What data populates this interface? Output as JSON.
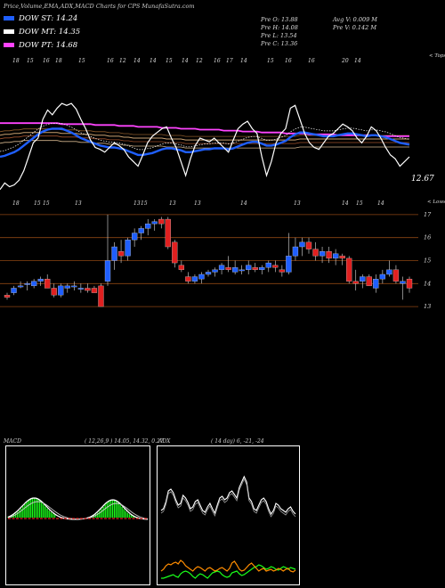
{
  "header": {
    "title": "Price,Volume,EMA,ADX,MACD Charts for CPS MunafaSutra.com"
  },
  "legend": [
    {
      "label": "DOW ST: 14.24",
      "color": "#1f5fff"
    },
    {
      "label": "DOW MT: 14.35",
      "color": "#ffffff"
    },
    {
      "label": "DOW PT: 14.68",
      "color": "#ff44ff"
    }
  ],
  "stats": {
    "pre_o": "Pre   O: 13.88",
    "pre_h": "Pre   H: 14.08",
    "pre_l": "Pre   L: 13.54",
    "pre_c": "Pre   C: 13.36",
    "avg_v": "Avg V: 0.009 M",
    "pre_v": "Pre   V: 0.142  M"
  },
  "top_panel": {
    "corner_label": "< Tops",
    "last_value": "12.67",
    "dates": [
      "18",
      "15",
      "16",
      "18",
      "15",
      "16",
      "12",
      "14",
      "14",
      "15",
      "14",
      "12",
      "16",
      "17",
      "14",
      "15",
      "16",
      "16",
      "20",
      "14"
    ]
  },
  "bottom_panel": {
    "corner_label": "< Lows",
    "dates": [
      "18",
      "15",
      "15",
      "13",
      "13",
      "15",
      "13",
      "13",
      "14",
      "13",
      "14",
      "15",
      "14"
    ]
  },
  "chart_data": [
    {
      "type": "line",
      "name": "price_ema_panel",
      "series": [
        {
          "name": "price",
          "values": [
            5,
            12,
            8,
            10,
            15,
            25,
            40,
            55,
            60,
            80,
            90,
            85,
            92,
            97,
            95,
            97,
            91,
            80,
            70,
            58,
            50,
            48,
            45,
            50,
            55,
            52,
            48,
            40,
            35,
            30,
            42,
            55,
            62,
            66,
            70,
            72,
            60,
            50,
            35,
            20,
            38,
            52,
            60,
            58,
            56,
            60,
            55,
            50,
            45,
            58,
            70,
            75,
            78,
            70,
            65,
            40,
            20,
            35,
            55,
            65,
            70,
            92,
            95,
            80,
            65,
            55,
            50,
            48,
            55,
            62,
            65,
            70,
            75,
            72,
            68,
            60,
            55,
            62,
            72,
            68,
            60,
            50,
            42,
            38,
            30,
            35,
            40
          ]
        },
        {
          "name": "ema_short",
          "values": [
            40,
            41,
            43,
            45,
            48,
            52,
            56,
            60,
            64,
            67,
            69,
            70,
            70,
            70,
            68,
            66,
            63,
            60,
            58,
            56,
            54,
            52,
            51,
            50,
            50,
            49,
            48,
            46,
            44,
            42,
            42,
            43,
            44,
            46,
            48,
            49,
            49,
            48,
            47,
            45,
            45,
            46,
            47,
            48,
            48,
            49,
            49,
            49,
            48,
            49,
            51,
            53,
            55,
            56,
            56,
            54,
            52,
            52,
            53,
            55,
            57,
            61,
            64,
            66,
            66,
            65,
            64,
            63,
            62,
            62,
            62,
            63,
            64,
            65,
            65,
            64,
            63,
            62,
            63,
            63,
            62,
            61,
            59,
            57,
            55,
            54,
            53
          ]
        },
        {
          "name": "ema_mid",
          "values": [
            63,
            64,
            64,
            65,
            65,
            66,
            66,
            66,
            66,
            66,
            66,
            66,
            66,
            65,
            65,
            65,
            65,
            64,
            64,
            64,
            63,
            63,
            63,
            62,
            62,
            62,
            61,
            61,
            60,
            60,
            60,
            60,
            60,
            60,
            60,
            59,
            59,
            59,
            59,
            58,
            58,
            58,
            58,
            58,
            58,
            58,
            58,
            58,
            58,
            58,
            58,
            58,
            58,
            58,
            58,
            58,
            58,
            58,
            58,
            58,
            58,
            58,
            58,
            59,
            59,
            59,
            59,
            59,
            59,
            59,
            59,
            59,
            59,
            59,
            59,
            59,
            59,
            59,
            59,
            59,
            59,
            59,
            59,
            59,
            59,
            59,
            59
          ]
        },
        {
          "name": "ema_long",
          "values": [
            76,
            76,
            76,
            76,
            76,
            76,
            76,
            76,
            76,
            76,
            76,
            76,
            76,
            75,
            75,
            75,
            75,
            75,
            75,
            75,
            74,
            74,
            74,
            74,
            74,
            73,
            73,
            73,
            73,
            72,
            72,
            72,
            72,
            72,
            71,
            71,
            71,
            71,
            70,
            70,
            70,
            70,
            69,
            69,
            69,
            69,
            69,
            68,
            68,
            68,
            68,
            67,
            67,
            67,
            67,
            66,
            66,
            66,
            66,
            66,
            65,
            65,
            65,
            65,
            65,
            64,
            64,
            64,
            64,
            64,
            64,
            63,
            63,
            63,
            63,
            63,
            63,
            63,
            63,
            63,
            62,
            62,
            62,
            62,
            62,
            62,
            62
          ]
        }
      ]
    },
    {
      "type": "bar",
      "name": "candlestick_panel",
      "yticks": [
        "17",
        "16",
        "15",
        "14",
        "13"
      ],
      "ylim": [
        12.5,
        17.5
      ],
      "candles": [
        [
          13.5,
          13.6,
          13.3,
          13.4
        ],
        [
          13.6,
          13.9,
          13.5,
          13.8
        ],
        [
          13.9,
          14.1,
          13.8,
          13.9
        ],
        [
          14.0,
          14.1,
          13.7,
          14.0
        ],
        [
          13.9,
          14.2,
          13.8,
          14.1
        ],
        [
          14.1,
          14.3,
          13.9,
          14.2
        ],
        [
          14.2,
          14.4,
          13.8,
          13.8
        ],
        [
          13.8,
          14.0,
          13.4,
          13.5
        ],
        [
          13.5,
          14.0,
          13.4,
          13.9
        ],
        [
          13.8,
          14.0,
          13.6,
          13.9
        ],
        [
          13.9,
          14.1,
          13.7,
          13.9
        ],
        [
          13.8,
          14.0,
          13.6,
          13.8
        ],
        [
          13.8,
          14.0,
          13.6,
          13.7
        ],
        [
          13.8,
          13.9,
          13.6,
          13.6
        ],
        [
          13.9,
          14.0,
          13.0,
          13.0
        ],
        [
          14.1,
          17.0,
          13.9,
          15.0
        ],
        [
          15.0,
          15.8,
          14.6,
          15.6
        ],
        [
          15.4,
          15.9,
          14.9,
          15.2
        ],
        [
          15.2,
          16.0,
          15.0,
          15.9
        ],
        [
          15.9,
          16.4,
          15.6,
          16.2
        ],
        [
          16.2,
          16.5,
          15.9,
          16.4
        ],
        [
          16.4,
          16.8,
          16.1,
          16.6
        ],
        [
          16.6,
          16.8,
          16.3,
          16.7
        ],
        [
          16.8,
          16.9,
          16.4,
          16.6
        ],
        [
          16.8,
          16.9,
          15.5,
          15.6
        ],
        [
          15.8,
          15.9,
          14.7,
          14.9
        ],
        [
          14.8,
          15.0,
          14.5,
          14.6
        ],
        [
          14.3,
          14.5,
          14.0,
          14.1
        ],
        [
          14.1,
          14.4,
          14.0,
          14.3
        ],
        [
          14.2,
          14.5,
          14.0,
          14.4
        ],
        [
          14.4,
          14.6,
          14.3,
          14.5
        ],
        [
          14.5,
          14.7,
          14.3,
          14.6
        ],
        [
          14.6,
          14.9,
          14.4,
          14.8
        ],
        [
          14.7,
          15.2,
          14.5,
          14.6
        ],
        [
          14.5,
          15.0,
          14.4,
          14.7
        ],
        [
          14.6,
          14.8,
          14.4,
          14.6
        ],
        [
          14.6,
          15.0,
          14.4,
          14.8
        ],
        [
          14.7,
          14.9,
          14.5,
          14.6
        ],
        [
          14.6,
          14.8,
          14.4,
          14.7
        ],
        [
          14.7,
          15.0,
          14.5,
          14.9
        ],
        [
          14.8,
          15.0,
          14.5,
          14.7
        ],
        [
          14.6,
          14.8,
          14.3,
          14.5
        ],
        [
          14.5,
          16.2,
          14.4,
          15.2
        ],
        [
          15.2,
          16.0,
          15.0,
          15.6
        ],
        [
          15.6,
          16.0,
          15.2,
          15.8
        ],
        [
          15.8,
          16.0,
          15.3,
          15.5
        ],
        [
          15.5,
          15.8,
          15.0,
          15.2
        ],
        [
          15.2,
          15.6,
          14.9,
          15.4
        ],
        [
          15.4,
          15.6,
          14.9,
          15.1
        ],
        [
          15.1,
          15.5,
          14.8,
          15.3
        ],
        [
          15.2,
          15.3,
          14.8,
          15.1
        ],
        [
          15.1,
          15.2,
          14.0,
          14.1
        ],
        [
          14.1,
          14.6,
          13.7,
          14.0
        ],
        [
          14.1,
          14.4,
          13.8,
          14.3
        ],
        [
          14.3,
          14.4,
          13.9,
          13.9
        ],
        [
          13.8,
          14.4,
          13.6,
          14.2
        ],
        [
          14.2,
          14.6,
          14.0,
          14.4
        ],
        [
          14.4,
          15.0,
          14.3,
          14.6
        ],
        [
          14.6,
          14.8,
          14.0,
          14.1
        ],
        [
          14.0,
          14.3,
          13.3,
          14.1
        ],
        [
          14.2,
          14.3,
          13.6,
          13.8
        ]
      ]
    },
    {
      "type": "line",
      "name": "MACD",
      "title": "MACD",
      "params": "( 12,26,9 ) 14.05,  14.32,  0.27"
    },
    {
      "type": "line",
      "name": "ADX",
      "title": "ADX",
      "params": "( 14  day) 6,  -21,  -24"
    }
  ],
  "colors": {
    "ema_blue": "#1f5fff",
    "ema_mid": "#ff44ff",
    "up_candle": "#1f5fff",
    "down_candle": "#e02020",
    "grid_brown": "#8b4513",
    "macd_green": "#1aff1a",
    "adx_orange": "#ff8c00"
  }
}
